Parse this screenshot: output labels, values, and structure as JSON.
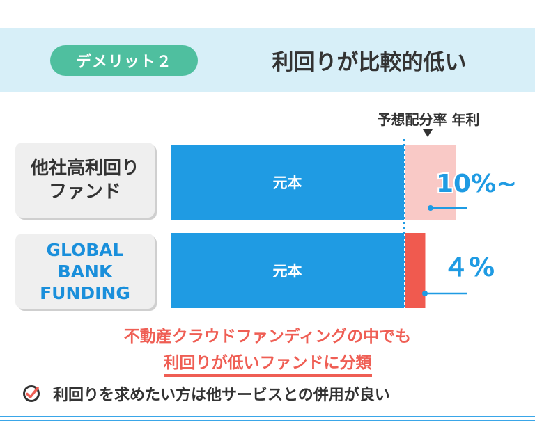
{
  "header": {
    "badge": "デメリット２",
    "title": "利回りが比較的低い"
  },
  "chart_data": {
    "type": "bar",
    "orientation": "horizontal",
    "stacked": true,
    "rate_header": "予想配分率 年利",
    "categories": [
      "他社高利回り\nファンド",
      "GLOBAL\nBANK\nFUNDING"
    ],
    "principal_label": "元本",
    "series": [
      {
        "values": [
          1,
          1
        ],
        "labels": [
          "元本",
          "元本"
        ]
      },
      {
        "values": [
          0.1,
          0.04
        ],
        "labels": [
          "10%~",
          "４%"
        ]
      }
    ],
    "colors": {
      "principal": "#1f9be3",
      "high_yield": "#f9c9c6",
      "gbf_yield": "#f05a4f",
      "leader": "#1f9be3",
      "rate_text": "#1f9be3"
    }
  },
  "subtitle": {
    "line1": "不動産クラウドファンディングの中でも",
    "line2": "利回りが低いファンドに分類"
  },
  "note": {
    "icon": "check-circle-icon",
    "text": "利回りを求めたい方は他サービスとの併用が良い"
  }
}
